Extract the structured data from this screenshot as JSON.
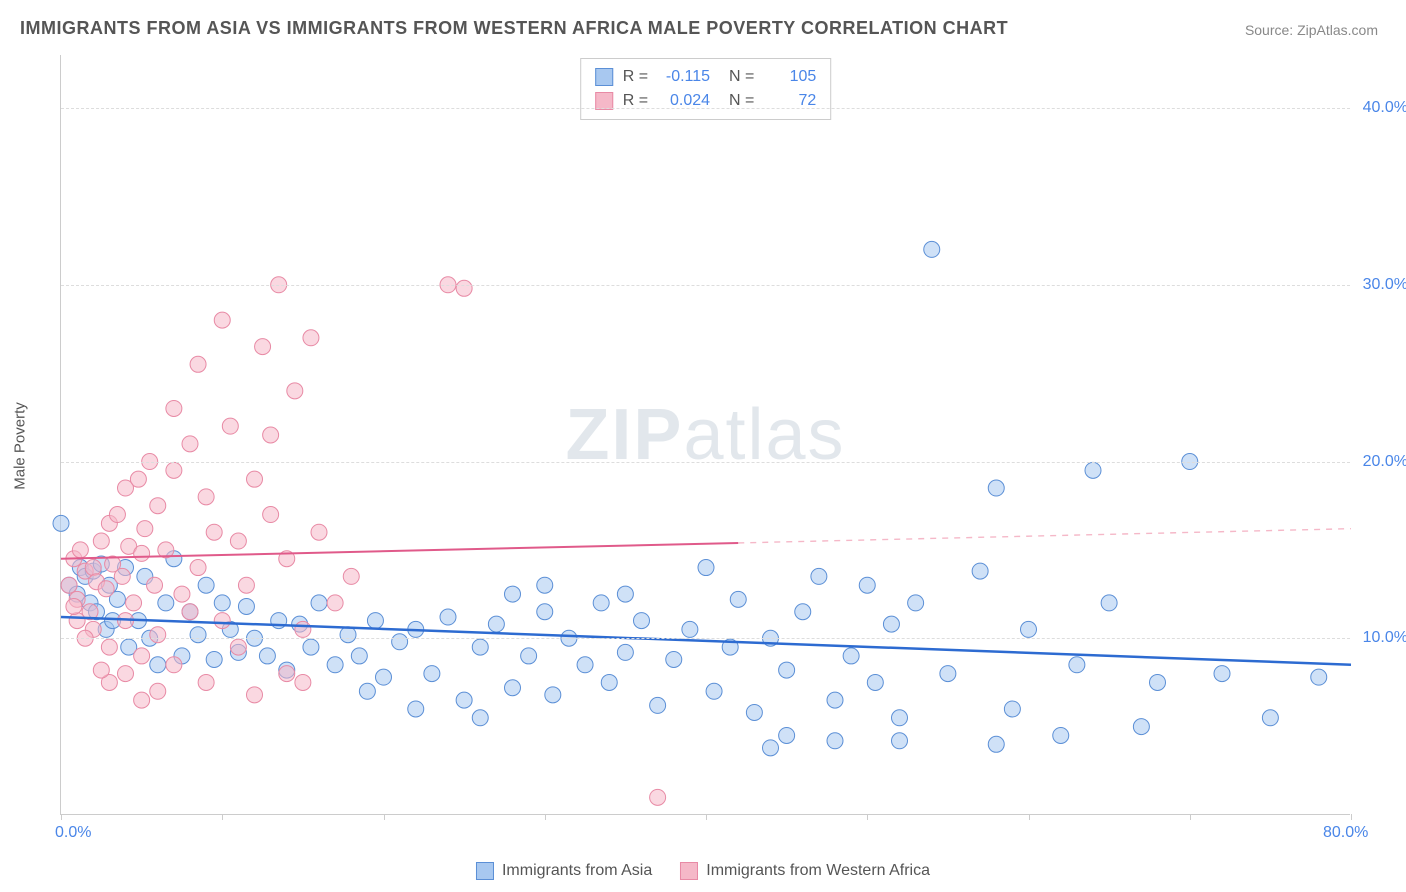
{
  "title": "IMMIGRANTS FROM ASIA VS IMMIGRANTS FROM WESTERN AFRICA MALE POVERTY CORRELATION CHART",
  "source_label": "Source:",
  "source_name": "ZipAtlas.com",
  "watermark_zip": "ZIP",
  "watermark_atlas": "atlas",
  "ylabel": "Male Poverty",
  "chart": {
    "type": "scatter-correlation",
    "xlim": [
      0,
      80
    ],
    "ylim": [
      0,
      43
    ],
    "x_ticks": [
      0,
      10,
      20,
      30,
      40,
      50,
      60,
      70,
      80
    ],
    "x_tick_labels": {
      "0": "0.0%",
      "80": "80.0%"
    },
    "y_gridlines": [
      10,
      20,
      30,
      40
    ],
    "y_tick_labels": {
      "10": "10.0%",
      "20": "20.0%",
      "30": "30.0%",
      "40": "40.0%"
    },
    "background_color": "#ffffff",
    "grid_color": "#dddddd",
    "axis_color": "#cccccc",
    "tick_label_color": "#4a86e8",
    "marker_radius": 8,
    "marker_opacity": 0.55,
    "series": [
      {
        "id": "asia",
        "label": "Immigrants from Asia",
        "color_fill": "#a8c8f0",
        "color_stroke": "#5b8fd6",
        "R": "-0.115",
        "N": "105",
        "trend": {
          "x1": 0,
          "y1": 11.2,
          "x2": 80,
          "y2": 8.5,
          "solid_until_x": 80,
          "color": "#2d6bd1",
          "width": 2.5
        },
        "points": [
          [
            0,
            16.5
          ],
          [
            0.5,
            13
          ],
          [
            1,
            12.5
          ],
          [
            1.2,
            14
          ],
          [
            1.5,
            13.5
          ],
          [
            1.8,
            12
          ],
          [
            2,
            13.8
          ],
          [
            2.2,
            11.5
          ],
          [
            2.5,
            14.2
          ],
          [
            2.8,
            10.5
          ],
          [
            3,
            13
          ],
          [
            3.2,
            11
          ],
          [
            3.5,
            12.2
          ],
          [
            4,
            14
          ],
          [
            4.2,
            9.5
          ],
          [
            4.8,
            11
          ],
          [
            5.2,
            13.5
          ],
          [
            5.5,
            10
          ],
          [
            6,
            8.5
          ],
          [
            6.5,
            12
          ],
          [
            7,
            14.5
          ],
          [
            7.5,
            9
          ],
          [
            8,
            11.5
          ],
          [
            8.5,
            10.2
          ],
          [
            9,
            13
          ],
          [
            9.5,
            8.8
          ],
          [
            10,
            12
          ],
          [
            10.5,
            10.5
          ],
          [
            11,
            9.2
          ],
          [
            11.5,
            11.8
          ],
          [
            12,
            10
          ],
          [
            12.8,
            9
          ],
          [
            13.5,
            11
          ],
          [
            14,
            8.2
          ],
          [
            14.8,
            10.8
          ],
          [
            15.5,
            9.5
          ],
          [
            16,
            12
          ],
          [
            17,
            8.5
          ],
          [
            17.8,
            10.2
          ],
          [
            18.5,
            9
          ],
          [
            19.5,
            11
          ],
          [
            20,
            7.8
          ],
          [
            21,
            9.8
          ],
          [
            22,
            10.5
          ],
          [
            23,
            8
          ],
          [
            24,
            11.2
          ],
          [
            25,
            6.5
          ],
          [
            26,
            9.5
          ],
          [
            27,
            10.8
          ],
          [
            28,
            7.2
          ],
          [
            29,
            9
          ],
          [
            30,
            11.5
          ],
          [
            30.5,
            6.8
          ],
          [
            31.5,
            10
          ],
          [
            32.5,
            8.5
          ],
          [
            33.5,
            12
          ],
          [
            34,
            7.5
          ],
          [
            35,
            9.2
          ],
          [
            36,
            11
          ],
          [
            37,
            6.2
          ],
          [
            38,
            8.8
          ],
          [
            39,
            10.5
          ],
          [
            40,
            14
          ],
          [
            40.5,
            7
          ],
          [
            41.5,
            9.5
          ],
          [
            42,
            12.2
          ],
          [
            43,
            5.8
          ],
          [
            44,
            10
          ],
          [
            45,
            8.2
          ],
          [
            46,
            11.5
          ],
          [
            47,
            13.5
          ],
          [
            48,
            6.5
          ],
          [
            49,
            9
          ],
          [
            50,
            13
          ],
          [
            50.5,
            7.5
          ],
          [
            51.5,
            10.8
          ],
          [
            52,
            5.5
          ],
          [
            53,
            12
          ],
          [
            54,
            32
          ],
          [
            55,
            8
          ],
          [
            57,
            13.8
          ],
          [
            58,
            18.5
          ],
          [
            59,
            6
          ],
          [
            60,
            10.5
          ],
          [
            62,
            4.5
          ],
          [
            63,
            8.5
          ],
          [
            64,
            19.5
          ],
          [
            65,
            12
          ],
          [
            67,
            5
          ],
          [
            68,
            7.5
          ],
          [
            70,
            20
          ],
          [
            72,
            8
          ],
          [
            75,
            5.5
          ],
          [
            78,
            7.8
          ],
          [
            44,
            3.8
          ],
          [
            48,
            4.2
          ],
          [
            45,
            4.5
          ],
          [
            35,
            12.5
          ],
          [
            28,
            12.5
          ],
          [
            30,
            13
          ],
          [
            19,
            7
          ],
          [
            22,
            6
          ],
          [
            26,
            5.5
          ],
          [
            58,
            4
          ],
          [
            52,
            4.2
          ]
        ]
      },
      {
        "id": "wafrica",
        "label": "Immigrants from Western Africa",
        "color_fill": "#f5b8c8",
        "color_stroke": "#e88aa5",
        "R": "0.024",
        "N": "72",
        "trend": {
          "x1": 0,
          "y1": 14.5,
          "x2": 80,
          "y2": 16.2,
          "solid_until_x": 42,
          "color": "#e05a8a",
          "width": 2,
          "dash_color": "#f5b8c8"
        },
        "points": [
          [
            0.5,
            13
          ],
          [
            0.8,
            14.5
          ],
          [
            1,
            12.2
          ],
          [
            1.2,
            15
          ],
          [
            1.5,
            13.8
          ],
          [
            1.8,
            11.5
          ],
          [
            2,
            14
          ],
          [
            2.2,
            13.2
          ],
          [
            2.5,
            15.5
          ],
          [
            2.8,
            12.8
          ],
          [
            3,
            16.5
          ],
          [
            3.2,
            14.2
          ],
          [
            3.5,
            17
          ],
          [
            3.8,
            13.5
          ],
          [
            4,
            18.5
          ],
          [
            4.2,
            15.2
          ],
          [
            4.5,
            12
          ],
          [
            4.8,
            19
          ],
          [
            5,
            14.8
          ],
          [
            5.2,
            16.2
          ],
          [
            5.5,
            20
          ],
          [
            5.8,
            13
          ],
          [
            6,
            17.5
          ],
          [
            6.5,
            15
          ],
          [
            7,
            19.5
          ],
          [
            7.5,
            12.5
          ],
          [
            8,
            21
          ],
          [
            8.5,
            14
          ],
          [
            9,
            18
          ],
          [
            9.5,
            16
          ],
          [
            10,
            11
          ],
          [
            10.5,
            22
          ],
          [
            11,
            15.5
          ],
          [
            11.5,
            13
          ],
          [
            12,
            19
          ],
          [
            12.5,
            26.5
          ],
          [
            13,
            17
          ],
          [
            13.5,
            30
          ],
          [
            14,
            14.5
          ],
          [
            14.5,
            24
          ],
          [
            15,
            10.5
          ],
          [
            15.5,
            27
          ],
          [
            16,
            16
          ],
          [
            17,
            12
          ],
          [
            18,
            13.5
          ],
          [
            2,
            10.5
          ],
          [
            3,
            9.5
          ],
          [
            4,
            11
          ],
          [
            5,
            9
          ],
          [
            6,
            10.2
          ],
          [
            7,
            8.5
          ],
          [
            8,
            11.5
          ],
          [
            9,
            7.5
          ],
          [
            10,
            28
          ],
          [
            11,
            9.5
          ],
          [
            12,
            6.8
          ],
          [
            13,
            21.5
          ],
          [
            6,
            7
          ],
          [
            5,
            6.5
          ],
          [
            4,
            8
          ],
          [
            7,
            23
          ],
          [
            8.5,
            25.5
          ],
          [
            24,
            30
          ],
          [
            25,
            29.8
          ],
          [
            3,
            7.5
          ],
          [
            2.5,
            8.2
          ],
          [
            37,
            1
          ],
          [
            1,
            11
          ],
          [
            1.5,
            10
          ],
          [
            0.8,
            11.8
          ],
          [
            14,
            8
          ],
          [
            15,
            7.5
          ]
        ]
      }
    ]
  },
  "stats_legend": {
    "rows": [
      {
        "swatch_fill": "#a8c8f0",
        "swatch_stroke": "#5b8fd6",
        "R_label": "R =",
        "R": "-0.115",
        "N_label": "N =",
        "N": "105"
      },
      {
        "swatch_fill": "#f5b8c8",
        "swatch_stroke": "#e88aa5",
        "R_label": "R =",
        "R": "0.024",
        "N_label": "N =",
        "N": "72"
      }
    ]
  },
  "bottom_legend": [
    {
      "swatch_fill": "#a8c8f0",
      "swatch_stroke": "#5b8fd6",
      "label": "Immigrants from Asia"
    },
    {
      "swatch_fill": "#f5b8c8",
      "swatch_stroke": "#e88aa5",
      "label": "Immigrants from Western Africa"
    }
  ]
}
